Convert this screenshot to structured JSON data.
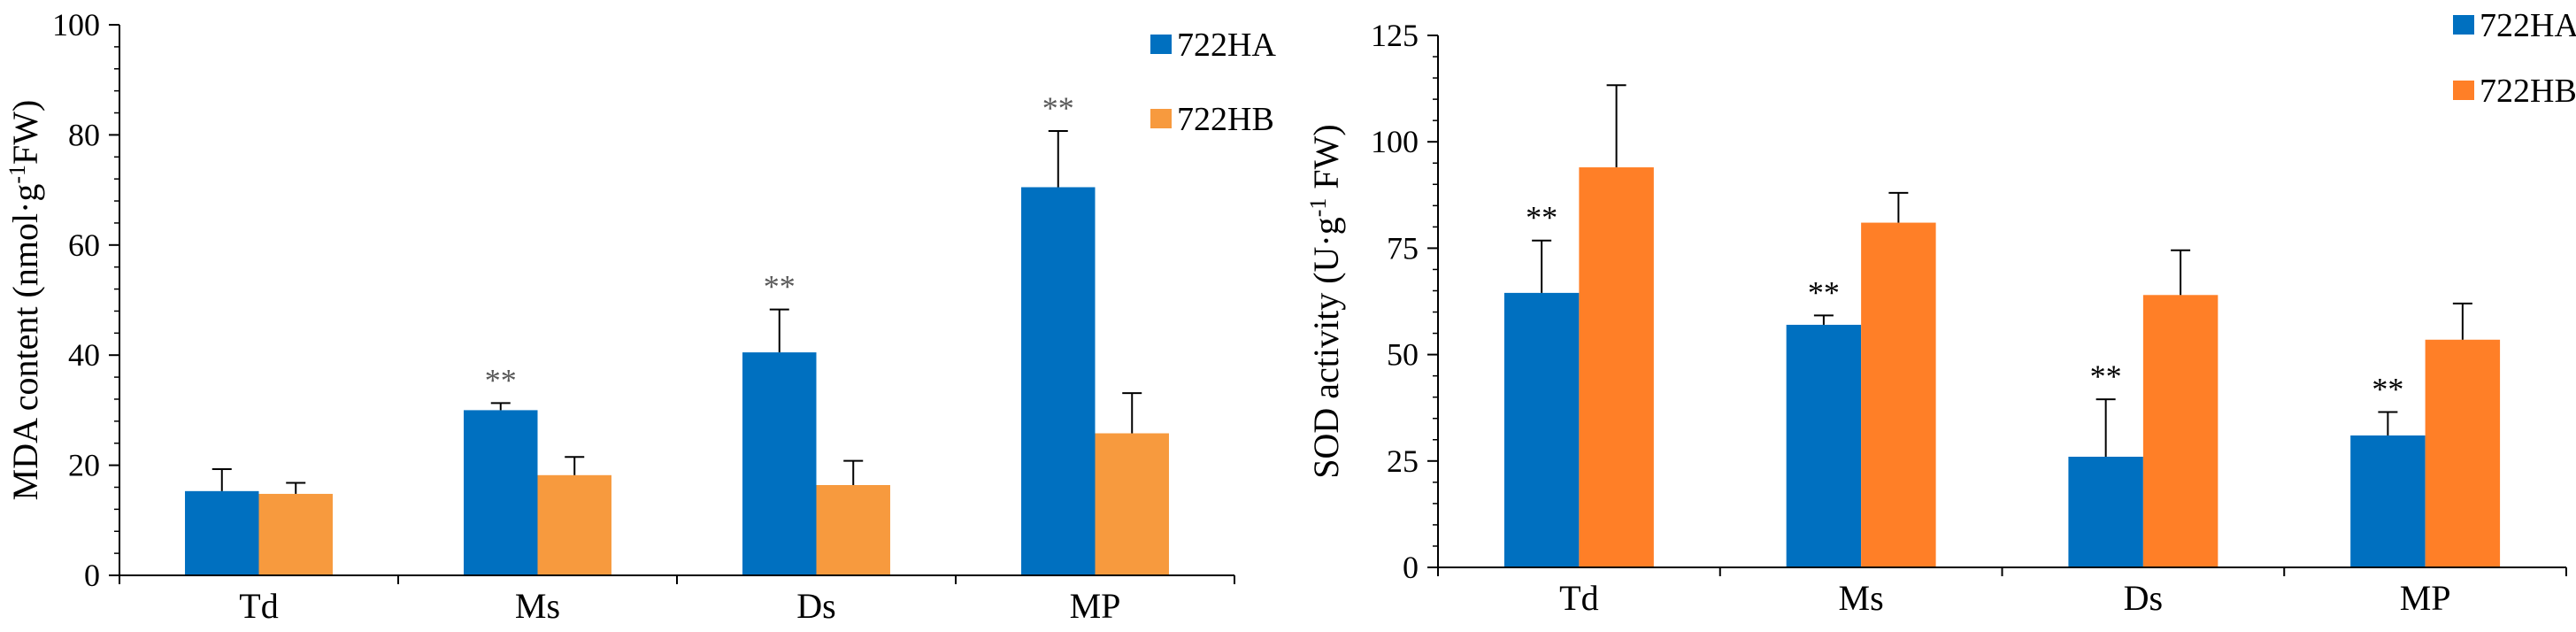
{
  "chart_data": [
    {
      "type": "bar",
      "title": "",
      "xlabel": "",
      "ylabel_main": "MDA content (nmol·g",
      "ylabel_sup": "-1",
      "ylabel_tail": "FW)",
      "ylim": [
        0,
        100
      ],
      "yticks": [
        0,
        20,
        40,
        60,
        80,
        100
      ],
      "categories": [
        "Td",
        "Ms",
        "Ds",
        "MP"
      ],
      "series": [
        {
          "name": "722HA",
          "color": "#0070c0",
          "values": [
            15.3,
            30.0,
            40.5,
            70.5
          ],
          "errors": [
            4.0,
            1.3,
            7.8,
            10.2
          ]
        },
        {
          "name": "722HB",
          "color": "#f79a3e",
          "values": [
            14.8,
            18.2,
            16.4,
            25.8
          ],
          "errors": [
            2.0,
            3.3,
            4.4,
            7.3
          ]
        }
      ],
      "significance": [
        "",
        "**",
        "**",
        "**"
      ],
      "significance_color": "#595959",
      "legend_position": "top-right"
    },
    {
      "type": "bar",
      "title": "",
      "xlabel": "",
      "ylabel_main": "SOD activity (U·g",
      "ylabel_sup": "-1",
      "ylabel_tail": " FW)",
      "ylim": [
        0,
        125
      ],
      "yticks": [
        0,
        25,
        50,
        75,
        100,
        125
      ],
      "categories": [
        "Td",
        "Ms",
        "Ds",
        "MP"
      ],
      "series": [
        {
          "name": "722HA",
          "color": "#0070c0",
          "values": [
            64.5,
            57.0,
            26.0,
            31.0
          ],
          "errors": [
            12.3,
            2.2,
            13.5,
            5.5
          ]
        },
        {
          "name": "722HB",
          "color": "#ff7f27",
          "values": [
            94.0,
            81.0,
            64.0,
            53.5
          ],
          "errors": [
            19.3,
            7.0,
            10.5,
            8.5
          ]
        }
      ],
      "significance": [
        "**",
        "**",
        "**",
        "**"
      ],
      "significance_color": "#000000",
      "legend_position": "top-right"
    }
  ]
}
